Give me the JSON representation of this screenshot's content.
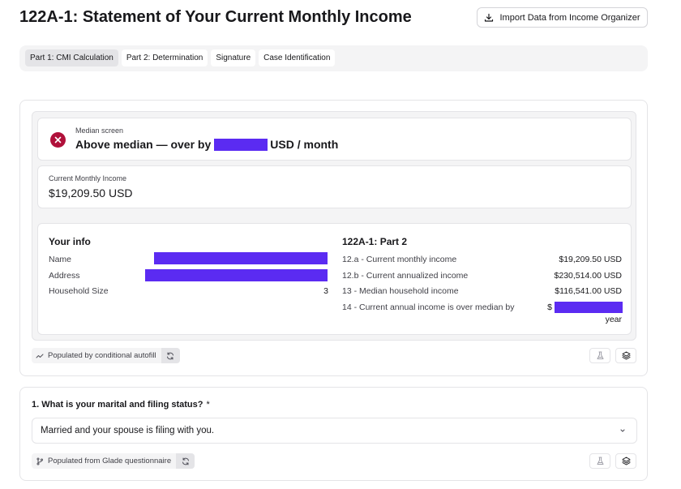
{
  "header": {
    "title": "122A-1: Statement of Your Current Monthly Income",
    "import_button": "Import Data from Income Organizer"
  },
  "tabs": [
    {
      "label": "Part 1: CMI Calculation",
      "active": true
    },
    {
      "label": "Part 2: Determination",
      "active": false
    },
    {
      "label": "Signature",
      "active": false
    },
    {
      "label": "Case Identification",
      "active": false
    }
  ],
  "summary": {
    "median_screen_label": "Median screen",
    "median_prefix": "Above median — over by",
    "median_suffix": "USD / month",
    "cmi_label": "Current Monthly Income",
    "cmi_value": "$19,209.50 USD"
  },
  "your_info": {
    "title": "Your info",
    "name_label": "Name",
    "address_label": "Address",
    "household_label": "Household Size",
    "household_value": "3"
  },
  "part2": {
    "title": "122A-1: Part 2",
    "rows": [
      {
        "label": "12.a - Current monthly income",
        "value": "$19,209.50 USD"
      },
      {
        "label": "12.b - Current annualized income",
        "value": "$230,514.00 USD"
      },
      {
        "label": "13 - Median household income",
        "value": "$116,541.00 USD"
      }
    ],
    "over_label": "14 - Current annual income is over median by",
    "over_value_prefix": "$",
    "over_value_suffix": "year"
  },
  "card1_footer": {
    "autofill_label": "Populated by conditional autofill"
  },
  "question1": {
    "label": "1. What is your marital and filing status?",
    "required_mark": "*",
    "selected_value": "Married and your spouse is filing with you.",
    "autofill_label": "Populated from Glade questionnaire"
  },
  "colors": {
    "redaction": "#5b2bf2",
    "error_icon": "#b0103a"
  }
}
